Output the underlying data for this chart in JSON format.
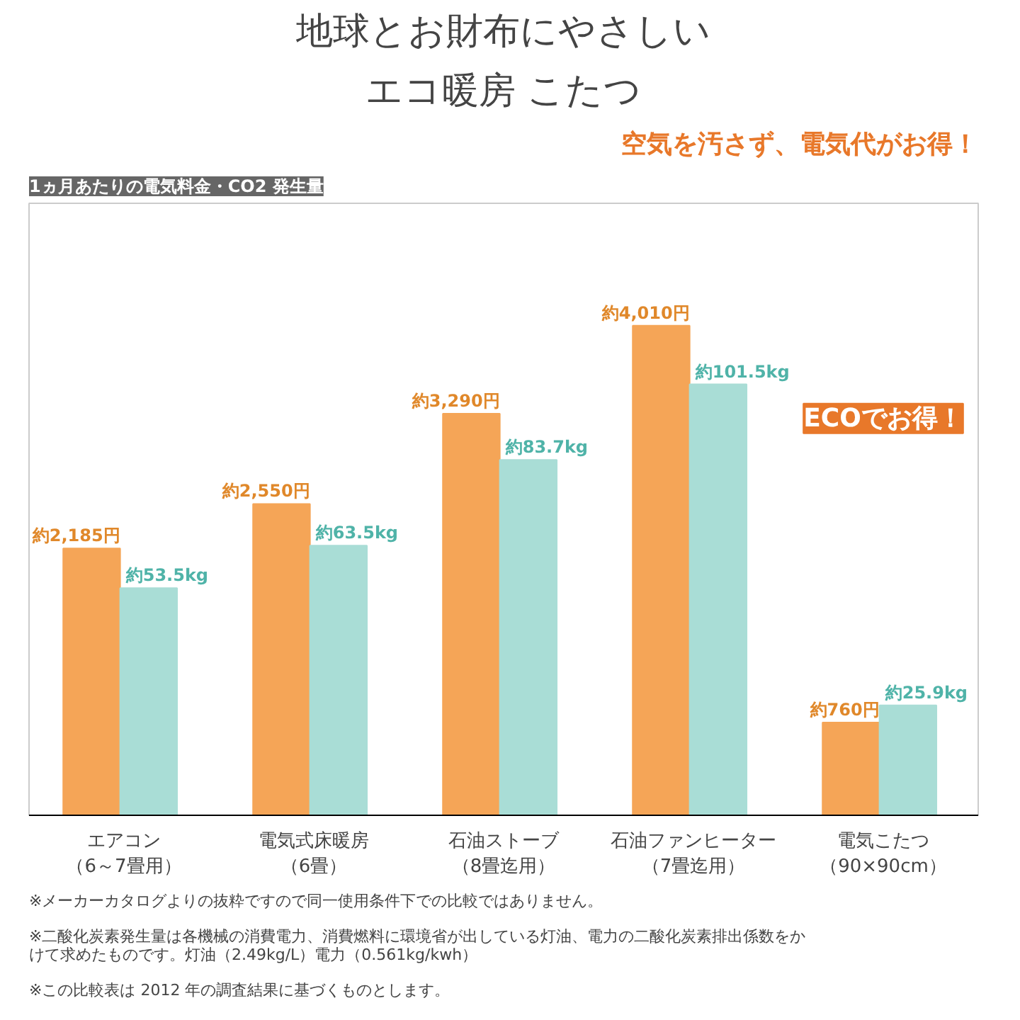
{
  "chart_data": {
    "type": "bar",
    "title": "地球とお財布にやさしい",
    "subtitle": "エコ暖房 こたつ",
    "categories": [
      "エアコン（6～7畳用）",
      "電気式床暖房（6畳）",
      "石油ストーブ（8畳迄用）",
      "石油ファンヒーター（7畳迄用）",
      "電気こたつ（90×90cm）"
    ],
    "series": [
      {
        "color": "#f5a557",
        "values": [
          2185,
          2550,
          3290,
          4010,
          760
        ],
        "value_labels": [
          "約2,185円",
          "約2,550円",
          "約3,290円",
          "約4,010円",
          "約760円"
        ]
      },
      {
        "color": "#a9ddd6",
        "axis": "y2",
        "values": [
          53.5,
          63.5,
          83.7,
          101.5,
          25.9
        ],
        "value_labels": [
          "約53.5kg",
          "約63.5kg",
          "約83.7kg",
          "約101.5kg",
          "約25.9kg"
        ]
      }
    ],
    "annotations": [
      "1ヵ月あたりの電気料金・CO2 発生量",
      "空気を汚さず、電気代がお得！",
      "ECOでお得！",
      "※メーカーカタログよりの抜粋ですので同一使用条件下での比較ではありません。",
      "※二酸化炭素発生量は各機械の消費電力、消費燃料に環境省が出している灯油、電力の二酸化炭素排出係数をかけて求めたものです。灯油（2.49kg/L）電力（0.561kg/kwh）",
      "※この比較表は 2012 年の調査結果に基づくものとします。"
    ],
    "grid": false
  }
}
